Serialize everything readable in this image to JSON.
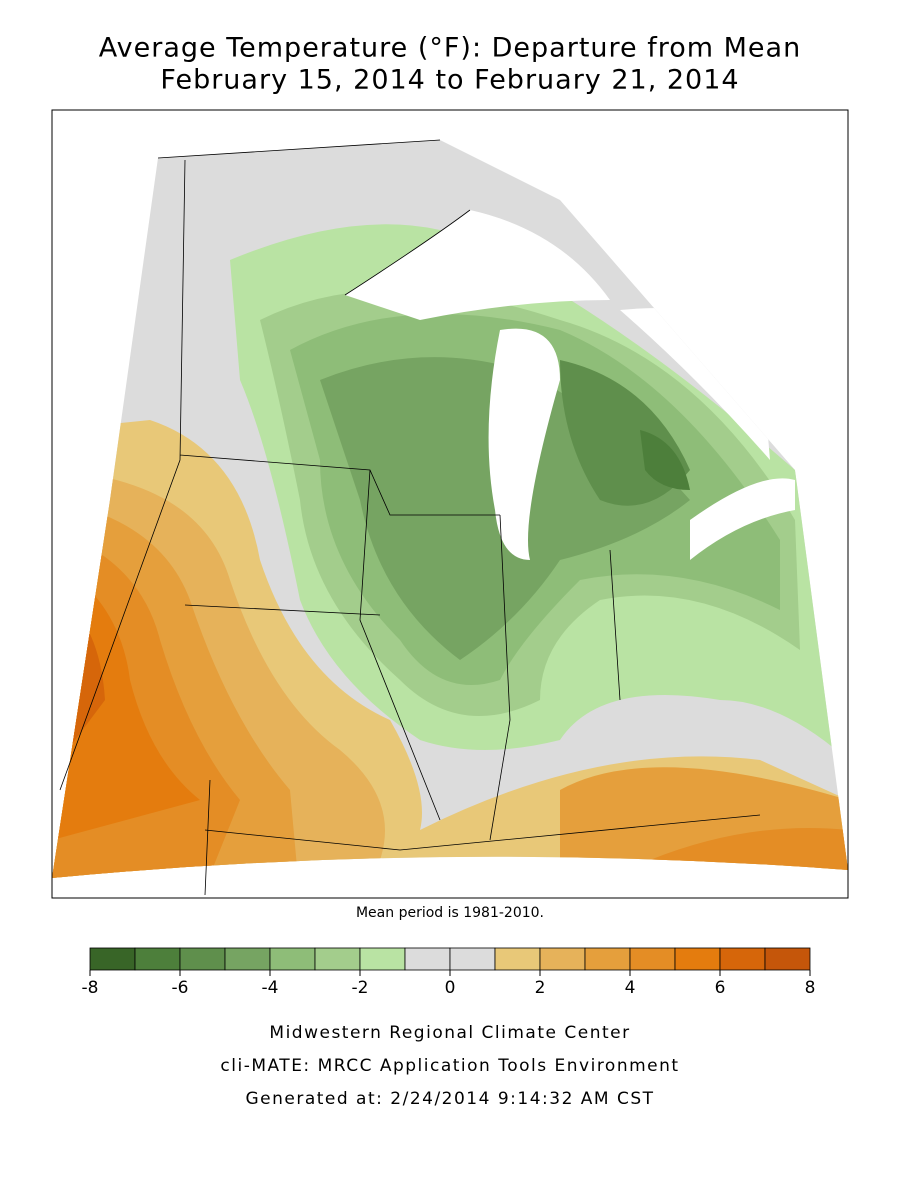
{
  "header": {
    "title_lines": [
      "Average Temperature (°F): Departure from Mean",
      "February 15, 2014 to February 21, 2014"
    ]
  },
  "map": {
    "note": "Mean period is 1981-2010."
  },
  "legend": {
    "range": [
      -8,
      8
    ],
    "ticks": [
      -8,
      -6,
      -4,
      -2,
      0,
      2,
      4,
      6,
      8
    ],
    "colors": [
      "#386527",
      "#4d7f3b",
      "#5f8f4c",
      "#76a462",
      "#8ebd78",
      "#a3cd8c",
      "#b9e3a3",
      "#dcdcdc",
      "#dcdcdc",
      "#e8c878",
      "#e6b25a",
      "#e59f3c",
      "#e48d25",
      "#e47c0e",
      "#d6660a",
      "#c5560a"
    ]
  },
  "footer": {
    "lines": [
      "Midwestern Regional Climate Center",
      "cli-MATE: MRCC Application Tools Environment",
      "Generated at: 2/24/2014 9:14:32 AM CST"
    ]
  }
}
